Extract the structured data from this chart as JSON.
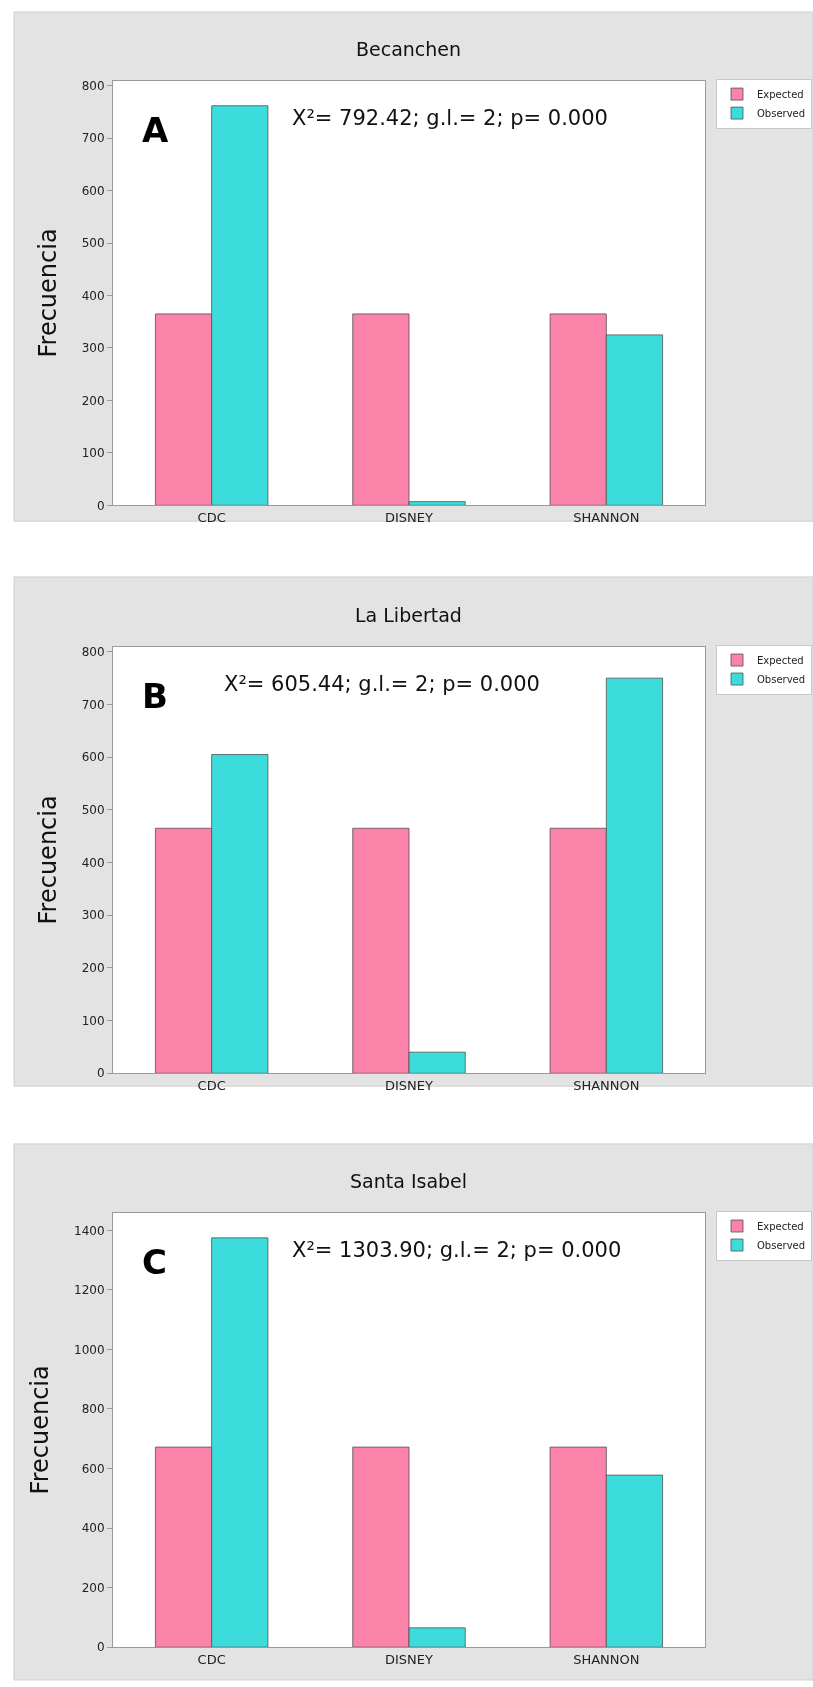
{
  "chart_data": [
    {
      "type": "bar",
      "title": "Becanchen",
      "ylabel": "Frecuencia",
      "categories": [
        "CDC",
        "DISNEY",
        "SHANNON"
      ],
      "series": [
        {
          "name": "Expected",
          "color": "#fb82a8",
          "values": [
            365,
            365,
            365
          ]
        },
        {
          "name": "Observed",
          "color": "#3cdcdc",
          "values": [
            762,
            7,
            325
          ]
        }
      ],
      "ylim": [
        0,
        810
      ],
      "yticks": [
        0,
        100,
        200,
        300,
        400,
        500,
        600,
        700,
        800
      ],
      "legend": "top right",
      "annotations": [
        "A",
        "X²= 792.42; g.l.= 2; p= 0.000"
      ]
    },
    {
      "type": "bar",
      "title": "La Libertad",
      "ylabel": "Frecuencia",
      "categories": [
        "CDC",
        "DISNEY",
        "SHANNON"
      ],
      "series": [
        {
          "name": "Expected",
          "color": "#fb82a8",
          "values": [
            465,
            465,
            465
          ]
        },
        {
          "name": "Observed",
          "color": "#3cdcdc",
          "values": [
            605,
            40,
            750
          ]
        }
      ],
      "ylim": [
        0,
        810
      ],
      "yticks": [
        0,
        100,
        200,
        300,
        400,
        500,
        600,
        700,
        800
      ],
      "legend": "top right",
      "annotations": [
        "B",
        "X²= 605.44; g.l.= 2; p= 0.000"
      ]
    },
    {
      "type": "bar",
      "title": "Santa Isabel",
      "ylabel": "Frecuencia",
      "categories": [
        "CDC",
        "DISNEY",
        "SHANNON"
      ],
      "series": [
        {
          "name": "Expected",
          "color": "#fb82a8",
          "values": [
            672,
            672,
            672
          ]
        },
        {
          "name": "Observed",
          "color": "#3cdcdc",
          "values": [
            1375,
            65,
            578
          ]
        }
      ],
      "ylim": [
        0,
        1460
      ],
      "yticks": [
        0,
        200,
        400,
        600,
        800,
        1000,
        1200,
        1400
      ],
      "legend": "top right",
      "annotations": [
        "C",
        "X²= 1303.90; g.l.= 2; p= 0.000"
      ]
    }
  ]
}
